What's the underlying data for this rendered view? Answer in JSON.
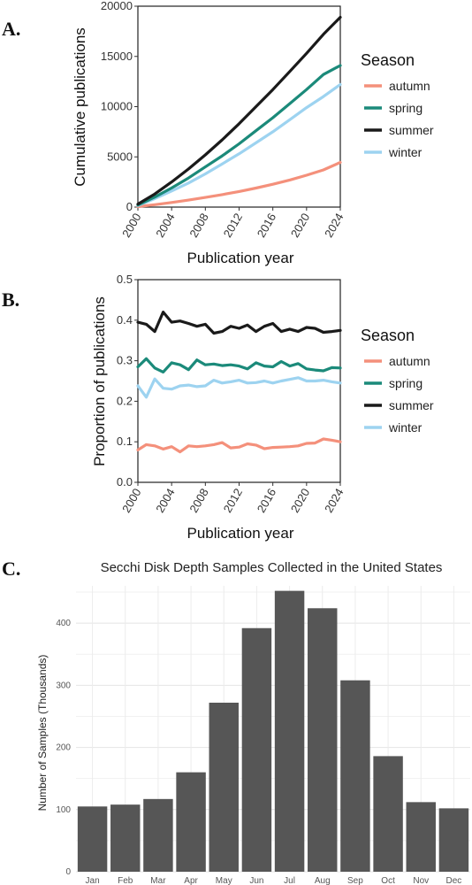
{
  "figure": {
    "panel_labels": [
      "A.",
      "B.",
      "C."
    ]
  },
  "chart_data": [
    {
      "type": "line",
      "panel": "A.",
      "xlabel": "Publication year",
      "ylabel": "Cumulative publications",
      "xlim": [
        2000,
        2024
      ],
      "ylim": [
        0,
        20000
      ],
      "xticks": [
        2000,
        2004,
        2008,
        2012,
        2016,
        2020,
        2024
      ],
      "yticks": [
        0,
        5000,
        10000,
        15000,
        20000
      ],
      "legend": {
        "title": "Season",
        "position": "right"
      },
      "x": [
        2000,
        2002,
        2004,
        2006,
        2008,
        2010,
        2012,
        2014,
        2016,
        2018,
        2020,
        2022,
        2024
      ],
      "series": [
        {
          "name": "autumn",
          "color": "#F4907B",
          "values": [
            50,
            240,
            460,
            700,
            960,
            1240,
            1550,
            1890,
            2270,
            2700,
            3170,
            3700,
            4450
          ]
        },
        {
          "name": "spring",
          "color": "#1B8A7A",
          "values": [
            200,
            1000,
            1900,
            2900,
            4000,
            5100,
            6300,
            7600,
            8900,
            10300,
            11700,
            13200,
            14100
          ]
        },
        {
          "name": "summer",
          "color": "#1A1A1A",
          "values": [
            300,
            1300,
            2500,
            3800,
            5200,
            6700,
            8300,
            10000,
            11700,
            13500,
            15300,
            17200,
            18900
          ]
        },
        {
          "name": "winter",
          "color": "#9DD3F0",
          "values": [
            150,
            850,
            1600,
            2400,
            3300,
            4300,
            5300,
            6400,
            7500,
            8700,
            9900,
            11000,
            12200
          ]
        }
      ]
    },
    {
      "type": "line",
      "panel": "B.",
      "xlabel": "Publication year",
      "ylabel": "Proportion of publications",
      "xlim": [
        2000,
        2024
      ],
      "ylim": [
        0,
        0.5
      ],
      "xticks": [
        2000,
        2004,
        2008,
        2012,
        2016,
        2020,
        2024
      ],
      "yticks": [
        "0.0",
        "0.1",
        "0.2",
        "0.3",
        "0.4",
        "0.5"
      ],
      "legend": {
        "title": "Season",
        "position": "right"
      },
      "x": [
        2000,
        2001,
        2002,
        2003,
        2004,
        2005,
        2006,
        2007,
        2008,
        2009,
        2010,
        2011,
        2012,
        2013,
        2014,
        2015,
        2016,
        2017,
        2018,
        2019,
        2020,
        2021,
        2022,
        2023,
        2024
      ],
      "series": [
        {
          "name": "autumn",
          "color": "#F4907B",
          "values": [
            0.08,
            0.093,
            0.09,
            0.082,
            0.088,
            0.075,
            0.09,
            0.088,
            0.09,
            0.093,
            0.098,
            0.085,
            0.087,
            0.095,
            0.092,
            0.083,
            0.086,
            0.087,
            0.088,
            0.09,
            0.096,
            0.097,
            0.107,
            0.104,
            0.1
          ]
        },
        {
          "name": "spring",
          "color": "#1B8A7A",
          "values": [
            0.285,
            0.305,
            0.282,
            0.272,
            0.295,
            0.29,
            0.278,
            0.302,
            0.29,
            0.292,
            0.288,
            0.29,
            0.287,
            0.28,
            0.295,
            0.287,
            0.285,
            0.298,
            0.287,
            0.293,
            0.28,
            0.277,
            0.275,
            0.283,
            0.282
          ]
        },
        {
          "name": "summer",
          "color": "#1A1A1A",
          "values": [
            0.395,
            0.39,
            0.372,
            0.42,
            0.395,
            0.398,
            0.392,
            0.385,
            0.39,
            0.368,
            0.372,
            0.385,
            0.38,
            0.388,
            0.372,
            0.385,
            0.392,
            0.372,
            0.378,
            0.372,
            0.382,
            0.38,
            0.37,
            0.372,
            0.375
          ]
        },
        {
          "name": "winter",
          "color": "#9DD3F0",
          "values": [
            0.238,
            0.21,
            0.255,
            0.232,
            0.23,
            0.238,
            0.24,
            0.236,
            0.238,
            0.252,
            0.245,
            0.248,
            0.252,
            0.245,
            0.246,
            0.25,
            0.245,
            0.25,
            0.254,
            0.258,
            0.25,
            0.25,
            0.252,
            0.248,
            0.245
          ]
        }
      ]
    },
    {
      "type": "bar",
      "panel": "C.",
      "title": "Secchi Disk Depth Samples Collected in the United States",
      "xlabel": "",
      "ylabel": "Number of Samples (Thousands)",
      "ylim": [
        0,
        460
      ],
      "yticks": [
        0,
        100,
        200,
        300,
        400
      ],
      "grid": true,
      "bar_color": "#565656",
      "categories": [
        "Jan",
        "Feb",
        "Mar",
        "Apr",
        "May",
        "Jun",
        "Jul",
        "Aug",
        "Sep",
        "Oct",
        "Nov",
        "Dec"
      ],
      "values": [
        105,
        108,
        117,
        160,
        272,
        392,
        452,
        424,
        308,
        186,
        112,
        102
      ]
    }
  ]
}
